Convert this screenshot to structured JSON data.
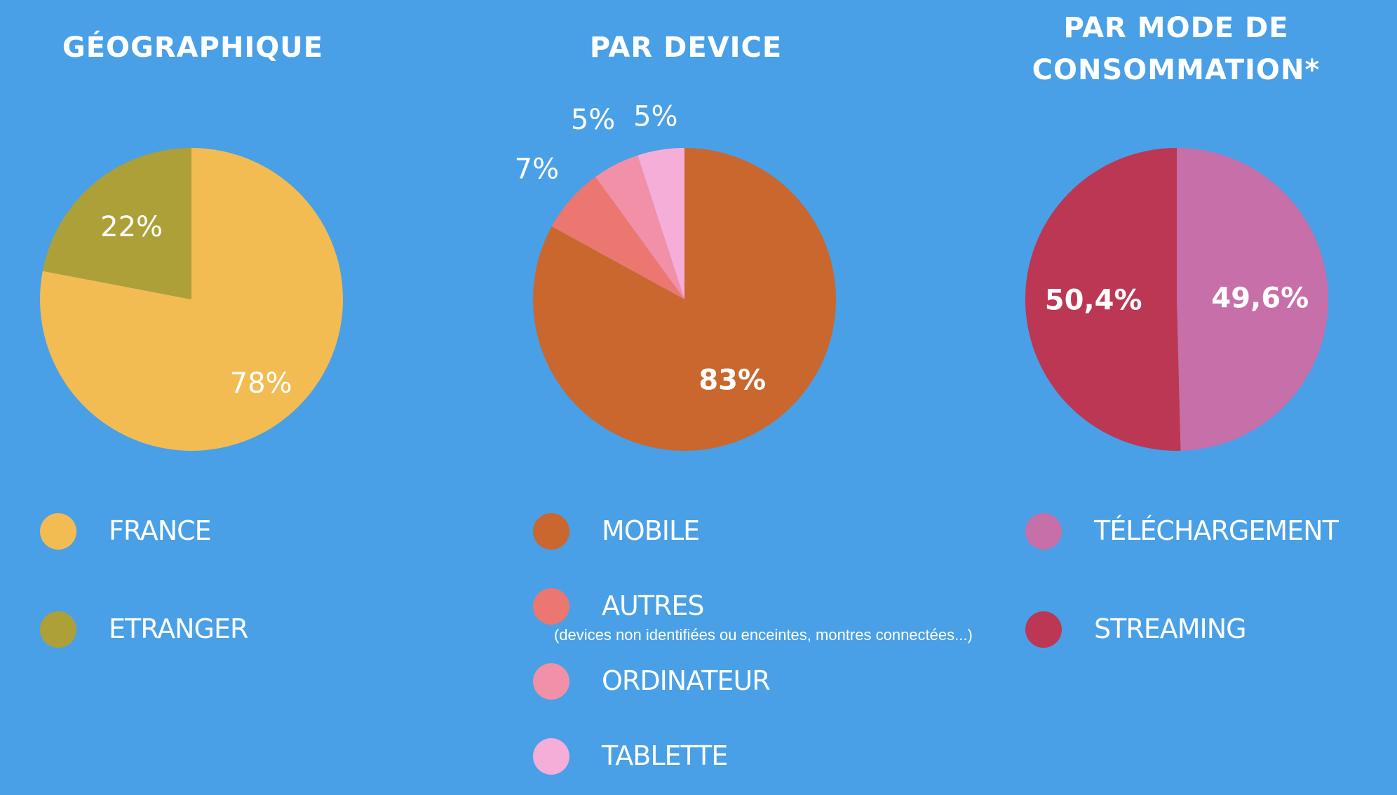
{
  "chart_data": [
    {
      "type": "pie",
      "title": "GÉOGRAPHIQUE",
      "categories": [
        "FRANCE",
        "ETRANGER"
      ],
      "values": [
        78,
        22
      ],
      "value_labels": [
        "78%",
        "22%"
      ],
      "colors": [
        "#f2bc52",
        "#ada039"
      ],
      "legend": "bottom"
    },
    {
      "type": "pie",
      "title": "PAR DEVICE",
      "categories": [
        "MOBILE",
        "AUTRES",
        "ORDINATEUR",
        "TABLETTE"
      ],
      "values": [
        83,
        7,
        5,
        5
      ],
      "value_labels": [
        "83%",
        "7%",
        "5%",
        "5%"
      ],
      "colors": [
        "#c9672e",
        "#ec7670",
        "#f190a7",
        "#f5aed8"
      ],
      "legend": "bottom",
      "annotations": [
        "(devices non identifiées ou enceintes, montres connectées...)"
      ]
    },
    {
      "type": "pie",
      "title": "PAR MODE DE CONSOMMATION*",
      "categories": [
        "TÉLÉCHARGEMENT",
        "STREAMING"
      ],
      "values": [
        49.6,
        50.4
      ],
      "value_labels": [
        "49,6%",
        "50,4%"
      ],
      "colors": [
        "#c66fa8",
        "#bc3753"
      ],
      "legend": "bottom"
    }
  ]
}
